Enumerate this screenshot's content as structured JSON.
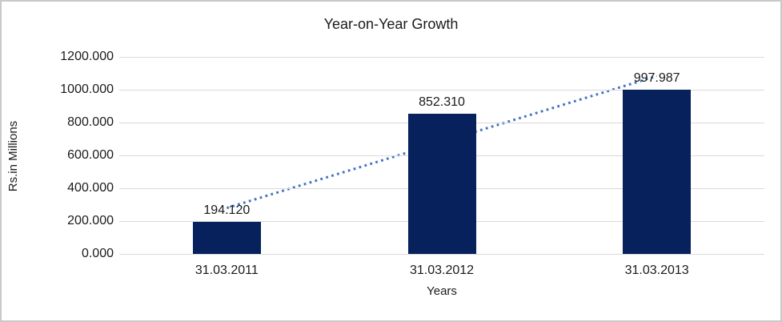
{
  "chart_data": {
    "type": "bar",
    "title": "Year-on-Year Growth",
    "xlabel": "Years",
    "ylabel": "Rs.in Millions",
    "categories": [
      "31.03.2011",
      "31.03.2012",
      "31.03.2013"
    ],
    "values": [
      194.12,
      852.31,
      997.987
    ],
    "data_labels": [
      "194.120",
      "852.310",
      "997.987"
    ],
    "ylim": [
      0,
      1200
    ],
    "ytick_step": 200,
    "ytick_labels": [
      "0.000",
      "200.000",
      "400.000",
      "600.000",
      "800.000",
      "1000.000",
      "1200.000"
    ],
    "grid": true,
    "legend": "none",
    "bar_color": "#06215c",
    "gridline_color": "#d9d9d9",
    "text_color": "#1a1a1a",
    "trendline": {
      "type": "linear",
      "style": "dotted",
      "color": "#4472c4"
    }
  }
}
